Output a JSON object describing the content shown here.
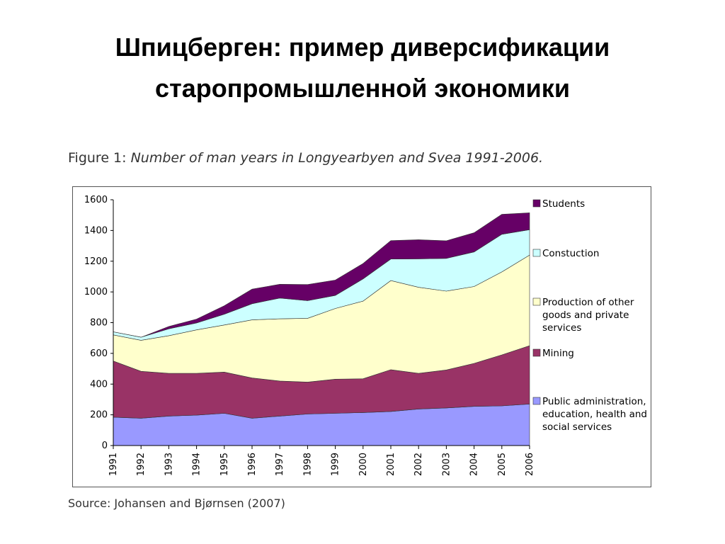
{
  "slide": {
    "title_line1": "Шпицберген: пример диверсификации",
    "title_line2": "старопромышленной экономики"
  },
  "figure": {
    "label": "Figure 1:",
    "caption": "Number of man years in Longyearbyen and Svea 1991-2006.",
    "source": "Source: Johansen and Bjørnsen (2007)"
  },
  "chart_data": {
    "type": "area",
    "stacked": true,
    "x": [
      "1991",
      "1992",
      "1993",
      "1994",
      "1995",
      "1996",
      "1997",
      "1998",
      "1999",
      "2000",
      "2001",
      "2002",
      "2003",
      "2004",
      "2005",
      "2006"
    ],
    "ylim": [
      0,
      1600
    ],
    "yticks": [
      0,
      200,
      400,
      600,
      800,
      1000,
      1200,
      1400,
      1600
    ],
    "grid": false,
    "legend_position": "right",
    "series": [
      {
        "name": "Public administration, education, health and social services",
        "legend_lines": [
          "Public administration,",
          "education, health and",
          "social  services"
        ],
        "color": "#9999ff",
        "values": [
          185,
          178,
          192,
          198,
          210,
          178,
          192,
          205,
          210,
          215,
          222,
          238,
          245,
          255,
          258,
          270
        ]
      },
      {
        "name": "Mining",
        "legend_lines": [
          "Mining"
        ],
        "color": "#993366",
        "values": [
          365,
          305,
          278,
          272,
          268,
          262,
          228,
          208,
          222,
          220,
          272,
          232,
          247,
          280,
          332,
          380
        ]
      },
      {
        "name": "Production of other goods and private services",
        "legend_lines": [
          "Production of other",
          "goods and private",
          "services"
        ],
        "color": "#ffffcc",
        "values": [
          170,
          202,
          245,
          283,
          307,
          378,
          405,
          415,
          460,
          505,
          580,
          560,
          513,
          500,
          540,
          590
        ]
      },
      {
        "name": "Constuction",
        "legend_lines": [
          "Constuction"
        ],
        "color": "#ccffff",
        "values": [
          20,
          20,
          45,
          45,
          70,
          105,
          135,
          115,
          85,
          145,
          140,
          185,
          213,
          225,
          245,
          165
        ]
      },
      {
        "name": "Students",
        "legend_lines": [
          "Students"
        ],
        "color": "#660066",
        "values": [
          0,
          0,
          15,
          25,
          55,
          95,
          90,
          105,
          100,
          100,
          120,
          125,
          115,
          125,
          130,
          110
        ]
      }
    ]
  }
}
